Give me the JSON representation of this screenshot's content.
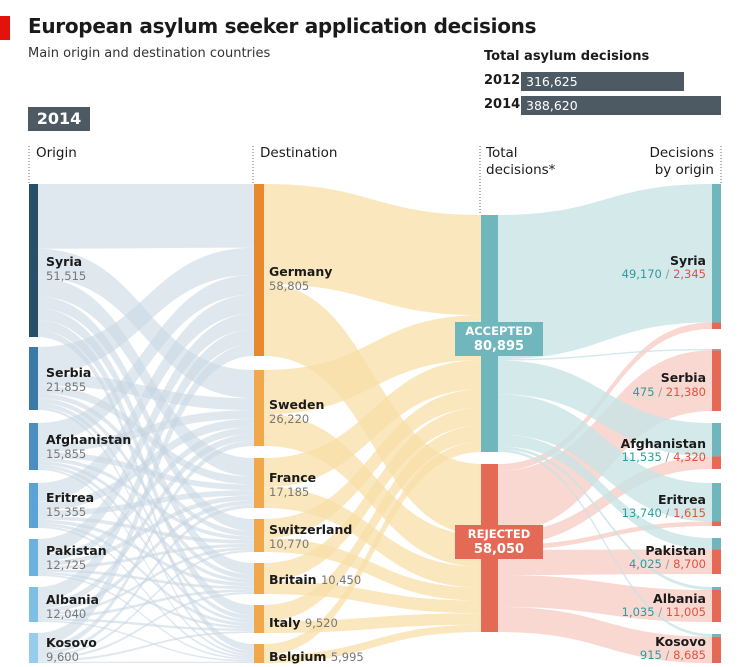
{
  "header": {
    "title": "European asylum seeker application decisions",
    "subtitle": "Main origin and destination countries"
  },
  "totals": {
    "title": "Total asylum decisions",
    "rows": [
      {
        "year": "2012",
        "value": "316,625"
      },
      {
        "year": "2014",
        "value": "388,620"
      }
    ]
  },
  "year_badge": "2014",
  "columns": {
    "origin": "Origin",
    "destination": "Destination",
    "total_line1": "Total",
    "total_line2": "decisions*",
    "by_origin_line1": "Decisions",
    "by_origin_line2": "by origin"
  },
  "colors": {
    "origin_shades": [
      "#284f6a",
      "#3b7aa8",
      "#4a8ec2",
      "#5aa3d6",
      "#6cb2e0",
      "#7fbfe5",
      "#97cdec"
    ],
    "destination": "#e8892f",
    "destination_light": "#f0a84a",
    "accepted": "#6fb6bd",
    "rejected": "#e46a56",
    "flow_left": "#c7d6e2",
    "flow_mid": "#f8dfa8",
    "flow_accept": "#c8e3e5",
    "flow_reject": "#f6c8bd"
  },
  "origins": [
    {
      "name": "Syria",
      "value": "51,515"
    },
    {
      "name": "Serbia",
      "value": "21,855"
    },
    {
      "name": "Afghanistan",
      "value": "15,855"
    },
    {
      "name": "Eritrea",
      "value": "15,355"
    },
    {
      "name": "Pakistan",
      "value": "12,725"
    },
    {
      "name": "Albania",
      "value": "12,040"
    },
    {
      "name": "Kosovo",
      "value": "9,600"
    }
  ],
  "destinations": [
    {
      "name": "Germany",
      "value": "58,805"
    },
    {
      "name": "Sweden",
      "value": "26,220"
    },
    {
      "name": "France",
      "value": "17,185"
    },
    {
      "name": "Switzerland",
      "value": "10,770"
    },
    {
      "name": "Britain",
      "value": "10,450"
    },
    {
      "name": "Italy",
      "value": "9,520"
    },
    {
      "name": "Belgium",
      "value": "5,995"
    }
  ],
  "status": [
    {
      "name": "ACCEPTED",
      "value": "80,895"
    },
    {
      "name": "REJECTED",
      "value": "58,050"
    }
  ],
  "decisions": [
    {
      "name": "Syria",
      "accepted": "49,170",
      "rejected": "2,345"
    },
    {
      "name": "Serbia",
      "accepted": "475",
      "rejected": "21,380"
    },
    {
      "name": "Afghanistan",
      "accepted": "11,535",
      "rejected": "4,320"
    },
    {
      "name": "Eritrea",
      "accepted": "13,740",
      "rejected": "1,615"
    },
    {
      "name": "Pakistan",
      "accepted": "4,025",
      "rejected": "8,700"
    },
    {
      "name": "Albania",
      "accepted": "1,035",
      "rejected": "11,005"
    },
    {
      "name": "Kosovo",
      "accepted": "915",
      "rejected": "8,685"
    }
  ],
  "separator": "/"
}
